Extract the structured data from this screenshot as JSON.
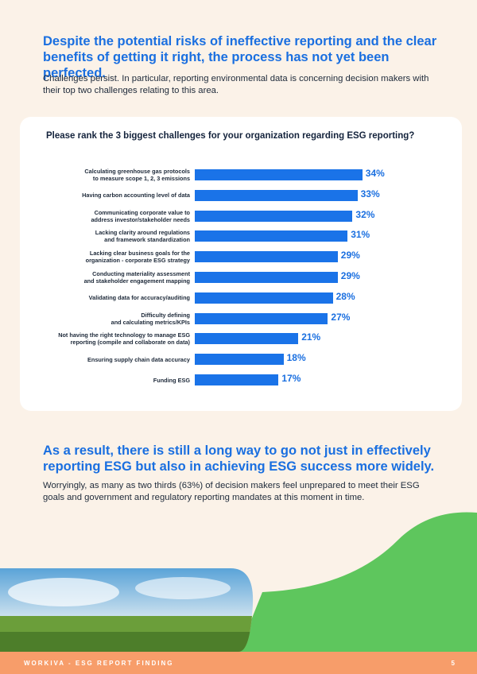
{
  "header": {
    "title": "Despite the potential risks of ineffective reporting and the clear benefits of getting it right, the process has not yet been perfected.",
    "text": "Challenges persist. In particular, reporting environmental data is concerning decision makers with their top two challenges relating to this area."
  },
  "chart_data": {
    "type": "bar",
    "orientation": "horizontal",
    "title": "Please rank the 3 biggest challenges for your organization regarding ESG reporting?",
    "color": "#1a73e8",
    "categories": [
      "Calculating greenhouse gas protocols\nto measure scope 1, 2, 3 emissions",
      "Having carbon accounting level of data",
      "Communicating corporate value to\naddress investor/stakeholder needs",
      "Lacking clarity around regulations\nand framework standardization",
      "Lacking clear business goals for the\norganization - corporate ESG strategy",
      "Conducting materiality assessment\nand stakeholder engagement mapping",
      "Validating data for accuracy/auditing",
      "Difficulty defining\nand calculating metrics/KPIs",
      "Not having the right technology to manage ESG\nreporting (compile and collaborate on data)",
      "Ensuring supply chain data accuracy",
      "Funding ESG"
    ],
    "values": [
      34,
      33,
      32,
      31,
      29,
      29,
      28,
      27,
      21,
      18,
      17
    ],
    "value_labels": [
      "34%",
      "33%",
      "32%",
      "31%",
      "29%",
      "29%",
      "28%",
      "27%",
      "21%",
      "18%",
      "17%"
    ]
  },
  "section": {
    "title": "As a result, there is still a long way to go not just in effectively reporting ESG but also in achieving ESG success more widely.",
    "text": "Worryingly, as many as two thirds (63%) of decision makers feel unprepared to meet their ESG goals and government and regulatory reporting mandates at this moment in time."
  },
  "footer": {
    "left": "WORKIVA - ESG REPORT FINDING",
    "page": "5"
  }
}
